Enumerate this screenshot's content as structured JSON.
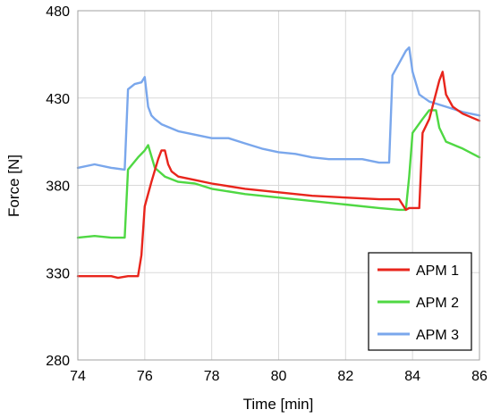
{
  "chart_data": {
    "type": "line",
    "title": "",
    "xlabel": "Time [min]",
    "ylabel": "Force [N]",
    "xlim": [
      74,
      86
    ],
    "ylim": [
      280,
      480
    ],
    "xticks": [
      74,
      76,
      78,
      80,
      82,
      84,
      86
    ],
    "yticks": [
      280,
      330,
      380,
      430,
      480
    ],
    "grid": true,
    "legend_position": "bottom-right",
    "series": [
      {
        "name": "APM 1",
        "color": "#e8251c",
        "x": [
          74.0,
          74.5,
          75.0,
          75.2,
          75.5,
          75.8,
          75.9,
          76.0,
          76.2,
          76.4,
          76.5,
          76.6,
          76.7,
          76.8,
          77.0,
          77.5,
          78.0,
          79.0,
          80.0,
          81.0,
          82.0,
          83.0,
          83.6,
          83.8,
          83.9,
          84.0,
          84.2,
          84.3,
          84.5,
          84.8,
          84.9,
          85.0,
          85.2,
          85.5,
          86.0
        ],
        "y": [
          328,
          328,
          328,
          327,
          328,
          328,
          340,
          368,
          382,
          395,
          400,
          400,
          392,
          388,
          385,
          383,
          381,
          378,
          376,
          374,
          373,
          372,
          372,
          366,
          367,
          367,
          367,
          410,
          418,
          440,
          445,
          432,
          425,
          421,
          417
        ]
      },
      {
        "name": "APM 2",
        "color": "#4fd843",
        "x": [
          74.0,
          74.5,
          75.0,
          75.4,
          75.5,
          75.8,
          76.0,
          76.1,
          76.3,
          76.6,
          77.0,
          77.5,
          78.0,
          79.0,
          80.0,
          81.0,
          82.0,
          83.0,
          83.6,
          83.8,
          83.9,
          84.0,
          84.3,
          84.5,
          84.7,
          84.8,
          85.0,
          85.5,
          86.0
        ],
        "y": [
          350,
          351,
          350,
          350,
          389,
          396,
          400,
          403,
          390,
          385,
          382,
          381,
          378,
          375,
          373,
          371,
          369,
          367,
          366,
          366,
          385,
          410,
          418,
          423,
          423,
          413,
          405,
          401,
          396
        ]
      },
      {
        "name": "APM 3",
        "color": "#7aa7ec",
        "x": [
          74.0,
          74.5,
          75.0,
          75.4,
          75.5,
          75.7,
          75.9,
          76.0,
          76.1,
          76.2,
          76.3,
          76.5,
          77.0,
          77.5,
          78.0,
          78.5,
          79.0,
          79.5,
          80.0,
          80.5,
          81.0,
          81.5,
          82.0,
          82.5,
          83.0,
          83.3,
          83.4,
          83.6,
          83.8,
          83.9,
          84.0,
          84.2,
          84.5,
          85.0,
          85.5,
          86.0
        ],
        "y": [
          390,
          392,
          390,
          389,
          435,
          438,
          439,
          442,
          425,
          420,
          418,
          415,
          411,
          409,
          407,
          407,
          404,
          401,
          399,
          398,
          396,
          395,
          395,
          395,
          393,
          393,
          443,
          450,
          457,
          459,
          445,
          432,
          428,
          425,
          422,
          420
        ]
      }
    ]
  }
}
